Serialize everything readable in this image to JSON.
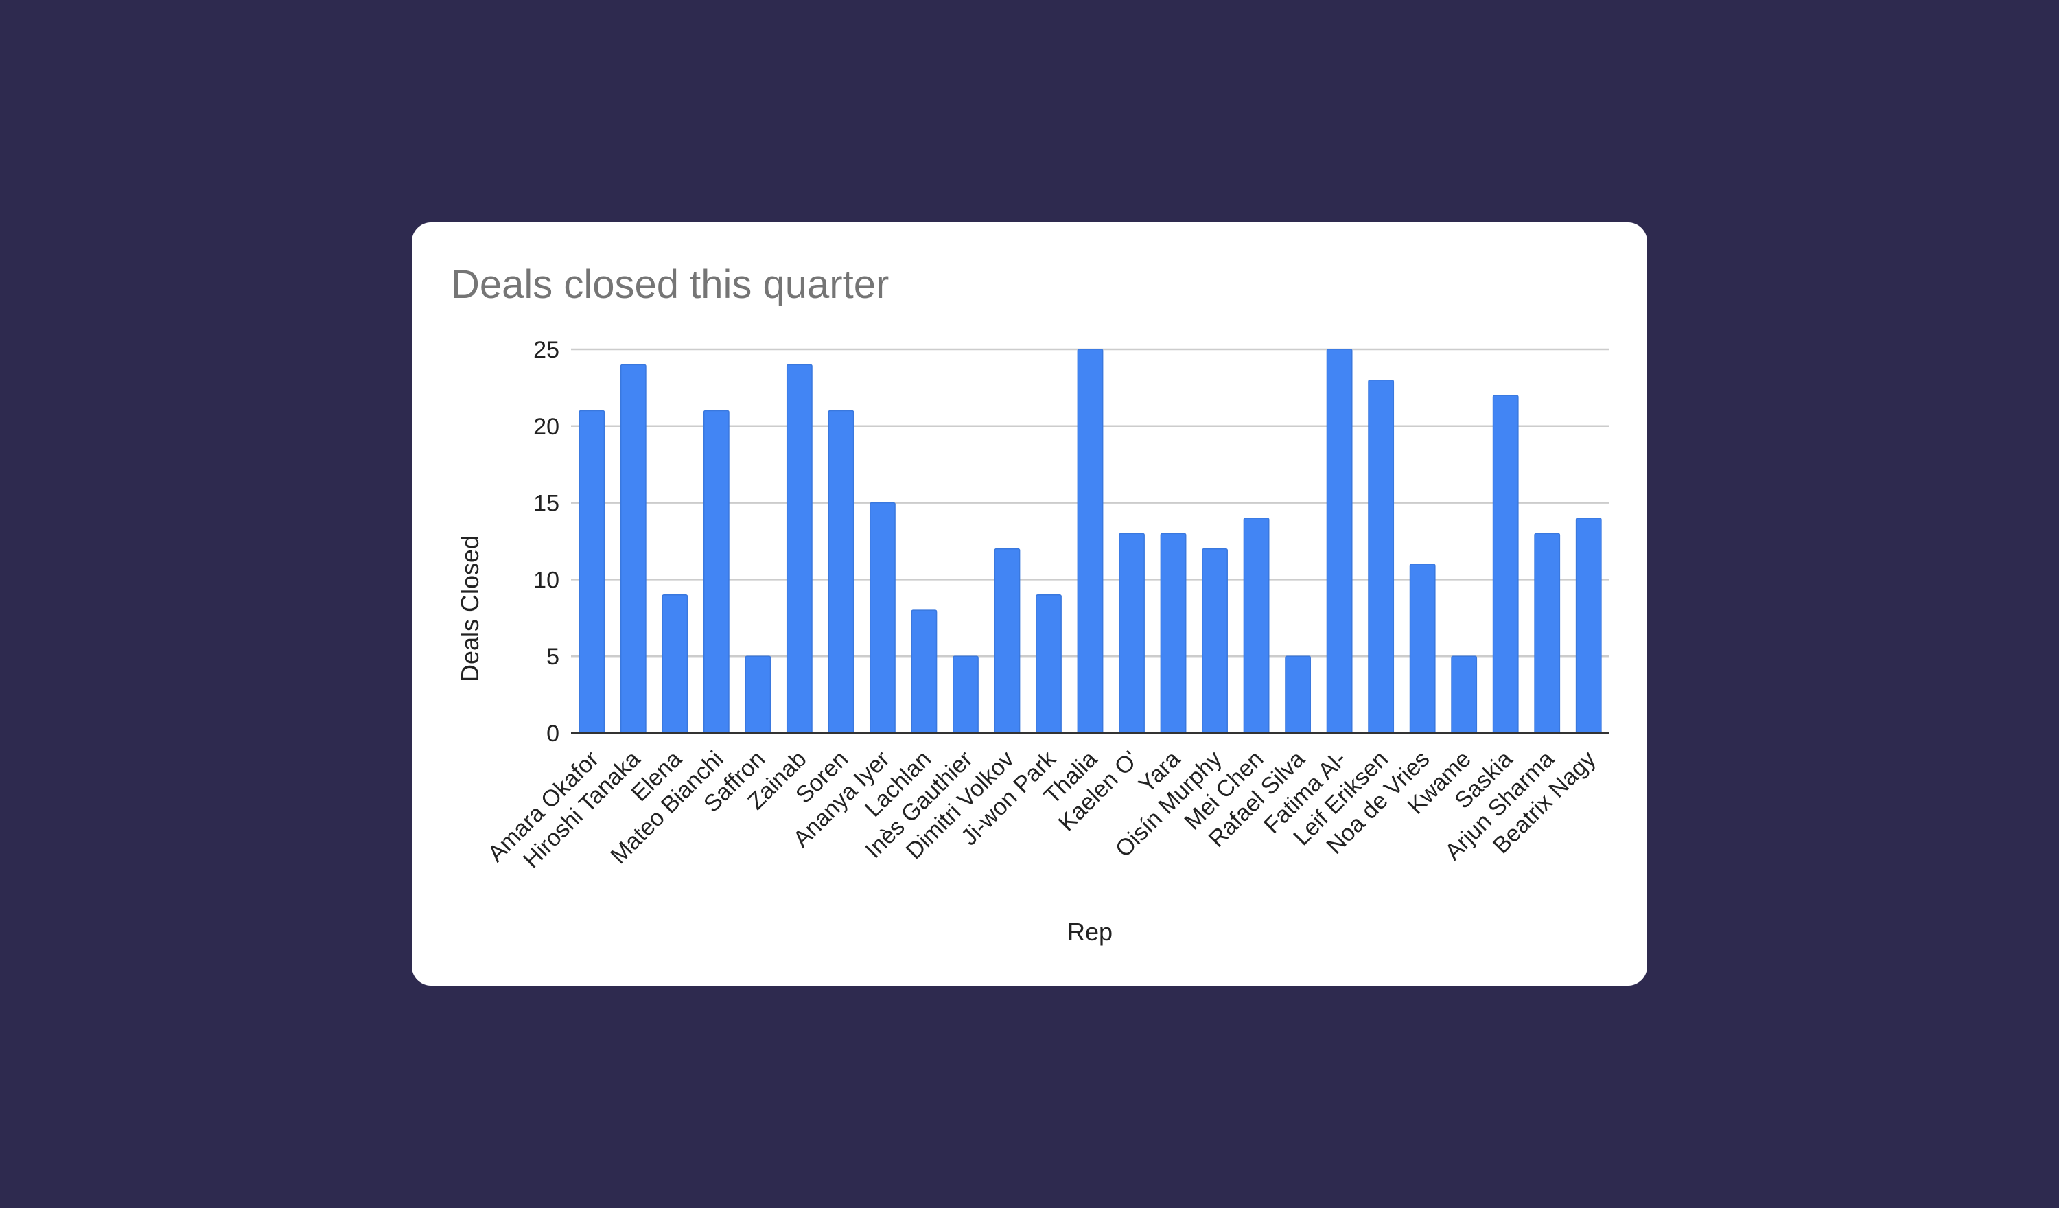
{
  "chart_data": {
    "type": "bar",
    "title": "Deals closed this quarter",
    "xlabel": "Rep",
    "ylabel": "Deals Closed",
    "ylim": [
      0,
      25
    ],
    "yticks": [
      0,
      5,
      10,
      15,
      20,
      25
    ],
    "grid": true,
    "legend": "none",
    "color": "#4285f4",
    "categories": [
      "Amara Okafor",
      "Hiroshi Tanaka",
      "Elena",
      "Mateo Bianchi",
      "Saffron",
      "Zainab",
      "Soren",
      "Ananya Iyer",
      "Lachlan",
      "Inès Gauthier",
      "Dimitri Volkov",
      "Ji-won Park",
      "Thalia",
      "Kaelen O'",
      "Yara",
      "Oisín Murphy",
      "Mei Chen",
      "Rafael Silva",
      "Fatima Al-",
      "Leif Eriksen",
      "Noa de Vries",
      "Kwame",
      "Saskia",
      "Arjun Sharma",
      "Beatrix Nagy"
    ],
    "values": [
      21,
      24,
      9,
      21,
      5,
      24,
      21,
      15,
      8,
      5,
      12,
      9,
      25,
      13,
      13,
      12,
      14,
      5,
      25,
      23,
      11,
      5,
      22,
      13,
      14
    ]
  }
}
